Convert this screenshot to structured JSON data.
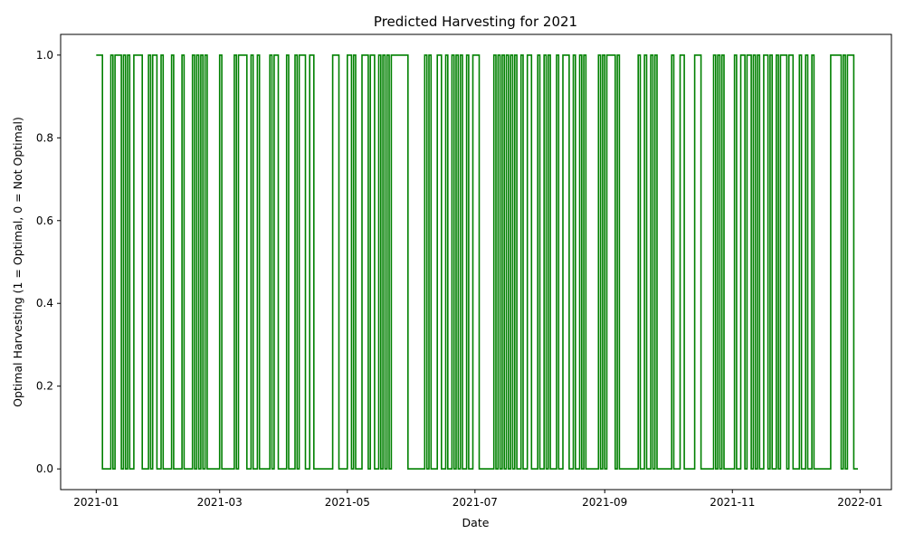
{
  "chart_data": {
    "type": "line",
    "title": "Predicted Harvesting for 2021",
    "xlabel": "Date",
    "ylabel": "Optimal Harvesting (1 = Optimal, 0 = Not Optimal)",
    "x_start": "2021-01-01",
    "x_end": "2021-12-31",
    "xlim": [
      "2020-12-15",
      "2022-01-16"
    ],
    "ylim": [
      -0.05,
      1.05
    ],
    "x_ticks": [
      "2021-01",
      "2021-03",
      "2021-05",
      "2021-07",
      "2021-09",
      "2021-11",
      "2022-01"
    ],
    "y_ticks": [
      "0.0",
      "0.2",
      "0.4",
      "0.6",
      "0.8",
      "1.0"
    ],
    "legend": "none",
    "grid": false,
    "series": [
      {
        "name": "",
        "color": "#008000",
        "draw_style": "step",
        "segments": [
          [
            "2021-01-01",
            1
          ],
          [
            "2021-01-04",
            0
          ],
          [
            "2021-01-08",
            1
          ],
          [
            "2021-01-09",
            0
          ],
          [
            "2021-01-10",
            1
          ],
          [
            "2021-01-13",
            0
          ],
          [
            "2021-01-14",
            1
          ],
          [
            "2021-01-15",
            0
          ],
          [
            "2021-01-16",
            1
          ],
          [
            "2021-01-17",
            0
          ],
          [
            "2021-01-19",
            1
          ],
          [
            "2021-01-23",
            0
          ],
          [
            "2021-01-26",
            1
          ],
          [
            "2021-01-27",
            0
          ],
          [
            "2021-01-28",
            1
          ],
          [
            "2021-01-30",
            0
          ],
          [
            "2021-02-01",
            1
          ],
          [
            "2021-02-02",
            0
          ],
          [
            "2021-02-06",
            1
          ],
          [
            "2021-02-07",
            0
          ],
          [
            "2021-02-11",
            1
          ],
          [
            "2021-02-12",
            0
          ],
          [
            "2021-02-16",
            1
          ],
          [
            "2021-02-17",
            0
          ],
          [
            "2021-02-18",
            1
          ],
          [
            "2021-02-19",
            0
          ],
          [
            "2021-02-20",
            1
          ],
          [
            "2021-02-21",
            0
          ],
          [
            "2021-02-22",
            1
          ],
          [
            "2021-02-23",
            0
          ],
          [
            "2021-03-01",
            1
          ],
          [
            "2021-03-02",
            0
          ],
          [
            "2021-03-08",
            1
          ],
          [
            "2021-03-09",
            0
          ],
          [
            "2021-03-10",
            1
          ],
          [
            "2021-03-14",
            0
          ],
          [
            "2021-03-16",
            1
          ],
          [
            "2021-03-17",
            0
          ],
          [
            "2021-03-19",
            1
          ],
          [
            "2021-03-20",
            0
          ],
          [
            "2021-03-25",
            1
          ],
          [
            "2021-03-26",
            0
          ],
          [
            "2021-03-27",
            1
          ],
          [
            "2021-03-29",
            0
          ],
          [
            "2021-04-02",
            1
          ],
          [
            "2021-04-03",
            0
          ],
          [
            "2021-04-06",
            1
          ],
          [
            "2021-04-07",
            0
          ],
          [
            "2021-04-08",
            1
          ],
          [
            "2021-04-11",
            0
          ],
          [
            "2021-04-13",
            1
          ],
          [
            "2021-04-15",
            0
          ],
          [
            "2021-04-24",
            1
          ],
          [
            "2021-04-27",
            0
          ],
          [
            "2021-05-01",
            1
          ],
          [
            "2021-05-03",
            0
          ],
          [
            "2021-05-04",
            1
          ],
          [
            "2021-05-05",
            0
          ],
          [
            "2021-05-08",
            1
          ],
          [
            "2021-05-11",
            0
          ],
          [
            "2021-05-12",
            1
          ],
          [
            "2021-05-14",
            0
          ],
          [
            "2021-05-16",
            1
          ],
          [
            "2021-05-17",
            0
          ],
          [
            "2021-05-18",
            1
          ],
          [
            "2021-05-19",
            0
          ],
          [
            "2021-05-20",
            1
          ],
          [
            "2021-05-21",
            0
          ],
          [
            "2021-05-22",
            1
          ],
          [
            "2021-05-30",
            0
          ],
          [
            "2021-06-07",
            1
          ],
          [
            "2021-06-08",
            0
          ],
          [
            "2021-06-09",
            1
          ],
          [
            "2021-06-10",
            0
          ],
          [
            "2021-06-13",
            1
          ],
          [
            "2021-06-15",
            0
          ],
          [
            "2021-06-17",
            1
          ],
          [
            "2021-06-18",
            0
          ],
          [
            "2021-06-20",
            1
          ],
          [
            "2021-06-21",
            0
          ],
          [
            "2021-06-22",
            1
          ],
          [
            "2021-06-23",
            0
          ],
          [
            "2021-06-24",
            1
          ],
          [
            "2021-06-25",
            0
          ],
          [
            "2021-06-27",
            1
          ],
          [
            "2021-06-28",
            0
          ],
          [
            "2021-06-30",
            1
          ],
          [
            "2021-07-03",
            0
          ],
          [
            "2021-07-10",
            1
          ],
          [
            "2021-07-11",
            0
          ],
          [
            "2021-07-12",
            1
          ],
          [
            "2021-07-13",
            0
          ],
          [
            "2021-07-14",
            1
          ],
          [
            "2021-07-15",
            0
          ],
          [
            "2021-07-16",
            1
          ],
          [
            "2021-07-17",
            0
          ],
          [
            "2021-07-18",
            1
          ],
          [
            "2021-07-19",
            0
          ],
          [
            "2021-07-20",
            1
          ],
          [
            "2021-07-21",
            0
          ],
          [
            "2021-07-23",
            1
          ],
          [
            "2021-07-24",
            0
          ],
          [
            "2021-07-26",
            1
          ],
          [
            "2021-07-28",
            0
          ],
          [
            "2021-07-31",
            1
          ],
          [
            "2021-08-01",
            0
          ],
          [
            "2021-08-03",
            1
          ],
          [
            "2021-08-04",
            0
          ],
          [
            "2021-08-05",
            1
          ],
          [
            "2021-08-06",
            0
          ],
          [
            "2021-08-09",
            1
          ],
          [
            "2021-08-10",
            0
          ],
          [
            "2021-08-12",
            1
          ],
          [
            "2021-08-15",
            0
          ],
          [
            "2021-08-17",
            1
          ],
          [
            "2021-08-18",
            0
          ],
          [
            "2021-08-20",
            1
          ],
          [
            "2021-08-21",
            0
          ],
          [
            "2021-08-22",
            1
          ],
          [
            "2021-08-23",
            0
          ],
          [
            "2021-08-29",
            1
          ],
          [
            "2021-08-30",
            0
          ],
          [
            "2021-08-31",
            1
          ],
          [
            "2021-09-01",
            0
          ],
          [
            "2021-09-02",
            1
          ],
          [
            "2021-09-06",
            0
          ],
          [
            "2021-09-07",
            1
          ],
          [
            "2021-09-08",
            0
          ],
          [
            "2021-09-17",
            1
          ],
          [
            "2021-09-18",
            0
          ],
          [
            "2021-09-20",
            1
          ],
          [
            "2021-09-21",
            0
          ],
          [
            "2021-09-23",
            1
          ],
          [
            "2021-09-24",
            0
          ],
          [
            "2021-09-25",
            1
          ],
          [
            "2021-09-26",
            0
          ],
          [
            "2021-10-03",
            1
          ],
          [
            "2021-10-04",
            0
          ],
          [
            "2021-10-07",
            1
          ],
          [
            "2021-10-09",
            0
          ],
          [
            "2021-10-14",
            1
          ],
          [
            "2021-10-17",
            0
          ],
          [
            "2021-10-23",
            1
          ],
          [
            "2021-10-24",
            0
          ],
          [
            "2021-10-25",
            1
          ],
          [
            "2021-10-26",
            0
          ],
          [
            "2021-10-27",
            1
          ],
          [
            "2021-10-28",
            0
          ],
          [
            "2021-11-02",
            1
          ],
          [
            "2021-11-03",
            0
          ],
          [
            "2021-11-05",
            1
          ],
          [
            "2021-11-07",
            0
          ],
          [
            "2021-11-08",
            1
          ],
          [
            "2021-11-10",
            0
          ],
          [
            "2021-11-11",
            1
          ],
          [
            "2021-11-12",
            0
          ],
          [
            "2021-11-13",
            1
          ],
          [
            "2021-11-14",
            0
          ],
          [
            "2021-11-16",
            1
          ],
          [
            "2021-11-18",
            0
          ],
          [
            "2021-11-19",
            1
          ],
          [
            "2021-11-20",
            0
          ],
          [
            "2021-11-22",
            1
          ],
          [
            "2021-11-23",
            0
          ],
          [
            "2021-11-24",
            1
          ],
          [
            "2021-11-27",
            0
          ],
          [
            "2021-11-28",
            1
          ],
          [
            "2021-11-30",
            0
          ],
          [
            "2021-12-03",
            1
          ],
          [
            "2021-12-04",
            0
          ],
          [
            "2021-12-06",
            1
          ],
          [
            "2021-12-07",
            0
          ],
          [
            "2021-12-09",
            1
          ],
          [
            "2021-12-10",
            0
          ],
          [
            "2021-12-18",
            1
          ],
          [
            "2021-12-23",
            0
          ],
          [
            "2021-12-24",
            1
          ],
          [
            "2021-12-25",
            0
          ],
          [
            "2021-12-26",
            1
          ],
          [
            "2021-12-29",
            0
          ],
          [
            "2021-12-31",
            0
          ]
        ]
      }
    ]
  }
}
